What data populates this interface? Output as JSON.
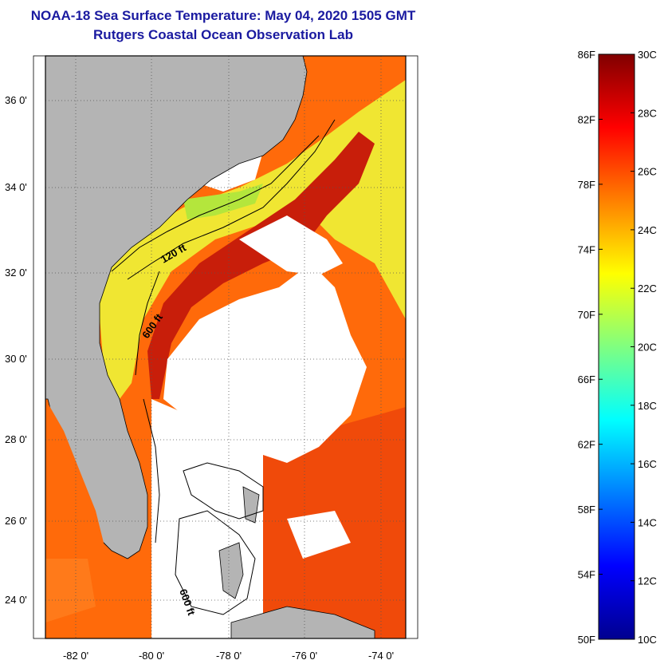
{
  "header": {
    "title": "NOAA-18 Sea Surface Temperature:  May 04, 2020 1505 GMT",
    "subtitle": "Rutgers Coastal Ocean Observation Lab"
  },
  "map": {
    "lat_labels": [
      "36 0'",
      "34 0'",
      "32 0'",
      "30 0'",
      "28 0'",
      "26 0'",
      "24 0'"
    ],
    "lon_labels": [
      "-82 0'",
      "-80 0'",
      "-78 0'",
      "-76 0'",
      "-74 0'"
    ],
    "contour_labels": [
      "120 ft",
      "600 ft",
      "600 ft"
    ],
    "colors": {
      "land": "#b4b4b4",
      "cloud": "#ffffff",
      "warm": "#c81e0a",
      "mid": "#ff6a0a",
      "shelf": "#f0e632"
    }
  },
  "colorbar": {
    "fahrenheit_labels": [
      "86F",
      "82F",
      "78F",
      "74F",
      "70F",
      "66F",
      "62F",
      "58F",
      "54F",
      "50F"
    ],
    "celsius_labels": [
      "30C",
      "28C",
      "26C",
      "24C",
      "22C",
      "20C",
      "18C",
      "16C",
      "14C",
      "12C",
      "10C"
    ],
    "range_f": [
      50,
      86
    ],
    "range_c": [
      10,
      30
    ]
  }
}
